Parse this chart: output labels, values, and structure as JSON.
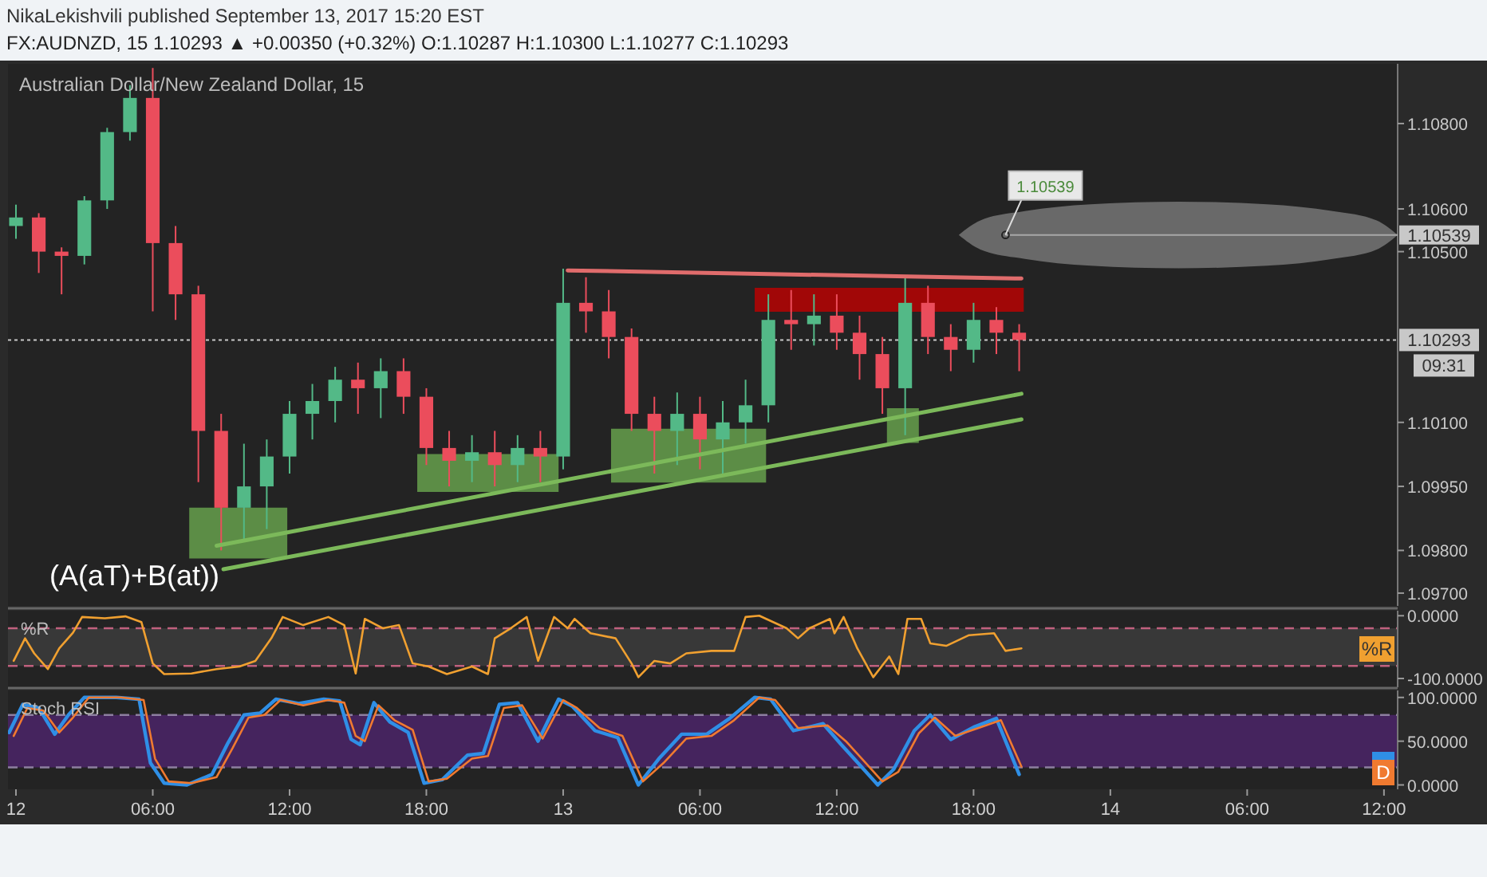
{
  "chart_data": [
    {
      "type": "candlestick",
      "title": "NikaLekishvili published September 13, 2017 15:20 EST",
      "subtitle": "FX:AUDNZD, 15  1.10293 ▲ +0.00350 (+0.32%)  O:1.10287  H:1.10300  L:1.10277  C:1.10293",
      "annotations": [
        "Australian Dollar/New Zealand Dollar, 15",
        "(A(aT)+B(at))",
        "09:31",
        {
          "text": "1.10539",
          "x": "2017-09-13T19:24",
          "y": 1.10539
        }
      ],
      "x": [
        "2017-09-12T00:00",
        "2017-09-12T01:00",
        "2017-09-12T02:00",
        "2017-09-12T03:00",
        "2017-09-12T04:00",
        "2017-09-12T05:00",
        "2017-09-12T06:00",
        "2017-09-12T07:00",
        "2017-09-12T08:00",
        "2017-09-12T09:00",
        "2017-09-12T10:00",
        "2017-09-12T11:00",
        "2017-09-12T12:00",
        "2017-09-12T13:00",
        "2017-09-12T14:00",
        "2017-09-12T15:00",
        "2017-09-12T16:00",
        "2017-09-12T17:00",
        "2017-09-12T18:00",
        "2017-09-12T19:00",
        "2017-09-12T20:00",
        "2017-09-12T21:00",
        "2017-09-12T22:00",
        "2017-09-12T23:00",
        "2017-09-13T00:00",
        "2017-09-13T01:00",
        "2017-09-13T02:00",
        "2017-09-13T03:00",
        "2017-09-13T04:00",
        "2017-09-13T05:00",
        "2017-09-13T06:00",
        "2017-09-13T07:00",
        "2017-09-13T08:00",
        "2017-09-13T09:00",
        "2017-09-13T10:00",
        "2017-09-13T11:00",
        "2017-09-13T12:00",
        "2017-09-13T13:00",
        "2017-09-13T14:00",
        "2017-09-13T15:00",
        "2017-09-13T16:00",
        "2017-09-13T17:00",
        "2017-09-13T18:00",
        "2017-09-13T19:00",
        "2017-09-13T20:00"
      ],
      "ohlc": [
        [
          1.1056,
          1.1061,
          1.1053,
          1.1058
        ],
        [
          1.1058,
          1.1059,
          1.1045,
          1.105
        ],
        [
          1.105,
          1.1051,
          1.104,
          1.1049
        ],
        [
          1.1049,
          1.1063,
          1.1047,
          1.1062
        ],
        [
          1.1062,
          1.1079,
          1.106,
          1.1078
        ],
        [
          1.1078,
          1.1089,
          1.1076,
          1.1086
        ],
        [
          1.1086,
          1.1093,
          1.1036,
          1.1052
        ],
        [
          1.1052,
          1.1056,
          1.1034,
          1.104
        ],
        [
          1.104,
          1.1042,
          1.0996,
          1.1008
        ],
        [
          1.1008,
          1.1012,
          1.098,
          1.099
        ],
        [
          1.099,
          1.1005,
          1.0982,
          1.0995
        ],
        [
          1.0995,
          1.1006,
          1.0985,
          1.1002
        ],
        [
          1.1002,
          1.1015,
          1.0998,
          1.1012
        ],
        [
          1.1012,
          1.1019,
          1.1006,
          1.1015
        ],
        [
          1.1015,
          1.1023,
          1.101,
          1.102
        ],
        [
          1.102,
          1.1024,
          1.1012,
          1.1018
        ],
        [
          1.1018,
          1.1025,
          1.1011,
          1.1022
        ],
        [
          1.1022,
          1.1025,
          1.1012,
          1.1016
        ],
        [
          1.1016,
          1.1018,
          1.1,
          1.1004
        ],
        [
          1.1004,
          1.1008,
          1.0995,
          1.1001
        ],
        [
          1.1001,
          1.1007,
          1.0996,
          1.1003
        ],
        [
          1.1003,
          1.1008,
          1.0995,
          1.1
        ],
        [
          1.1,
          1.1007,
          1.0996,
          1.1004
        ],
        [
          1.1004,
          1.1008,
          1.0996,
          1.1002
        ],
        [
          1.1002,
          1.1046,
          1.0999,
          1.1038
        ],
        [
          1.1038,
          1.1044,
          1.1031,
          1.1036
        ],
        [
          1.1036,
          1.1041,
          1.1025,
          1.103
        ],
        [
          1.103,
          1.1032,
          1.1008,
          1.1012
        ],
        [
          1.1012,
          1.1016,
          1.0998,
          1.1008
        ],
        [
          1.1008,
          1.1017,
          1.1,
          1.1012
        ],
        [
          1.1012,
          1.1016,
          1.0999,
          1.1006
        ],
        [
          1.1006,
          1.1015,
          1.0998,
          1.101
        ],
        [
          1.101,
          1.102,
          1.1005,
          1.1014
        ],
        [
          1.1014,
          1.104,
          1.101,
          1.1034
        ],
        [
          1.1034,
          1.1041,
          1.1027,
          1.1033
        ],
        [
          1.1033,
          1.104,
          1.1028,
          1.1035
        ],
        [
          1.1035,
          1.104,
          1.1027,
          1.1031
        ],
        [
          1.1031,
          1.1035,
          1.102,
          1.1026
        ],
        [
          1.1026,
          1.103,
          1.1012,
          1.1018
        ],
        [
          1.1018,
          1.1044,
          1.1007,
          1.1038
        ],
        [
          1.1038,
          1.1042,
          1.1026,
          1.103
        ],
        [
          1.103,
          1.1033,
          1.1022,
          1.1027
        ],
        [
          1.1027,
          1.1038,
          1.1024,
          1.1034
        ],
        [
          1.1034,
          1.1037,
          1.1026,
          1.1031
        ],
        [
          1.1031,
          1.1033,
          1.1022,
          1.10293
        ]
      ],
      "colors": [
        "#53b987",
        "#eb4d5c",
        "#eb4d5c",
        "#53b987",
        "#53b987",
        "#53b987",
        "#eb4d5c",
        "#eb4d5c",
        "#eb4d5c",
        "#eb4d5c",
        "#53b987",
        "#53b987",
        "#53b987",
        "#53b987",
        "#53b987",
        "#eb4d5c",
        "#53b987",
        "#eb4d5c",
        "#eb4d5c",
        "#eb4d5c",
        "#53b987",
        "#eb4d5c",
        "#53b987",
        "#eb4d5c",
        "#53b987",
        "#eb4d5c",
        "#eb4d5c",
        "#eb4d5c",
        "#eb4d5c",
        "#53b987",
        "#eb4d5c",
        "#53b987",
        "#53b987",
        "#53b987",
        "#eb4d5c",
        "#53b987",
        "#eb4d5c",
        "#eb4d5c",
        "#eb4d5c",
        "#53b987",
        "#eb4d5c",
        "#eb4d5c",
        "#53b987",
        "#eb4d5c",
        "#eb4d5c"
      ],
      "series": [
        {
          "type": "area",
          "color": "#6aa84f",
          "x": [
            "2017-09-12T07:36",
            "2017-09-12T11:54"
          ],
          "values": [
            null,
            null
          ],
          "lower": [
            1.09781,
            1.09781
          ],
          "upper": [
            1.099,
            1.099
          ]
        },
        {
          "type": "area",
          "color": "#6aa84f",
          "x": [
            "2017-09-12T17:36",
            "2017-09-12T23:48"
          ],
          "values": [
            null,
            null
          ],
          "lower": [
            1.09937,
            1.09937
          ],
          "upper": [
            1.10026,
            1.10026
          ]
        },
        {
          "type": "area",
          "color": "#6aa84f",
          "x": [
            "2017-09-13T02:06",
            "2017-09-13T08:54"
          ],
          "values": [
            null,
            null
          ],
          "lower": [
            1.09959,
            1.09959
          ],
          "upper": [
            1.10085,
            1.10085
          ]
        },
        {
          "type": "area",
          "color": "#6aa84f",
          "x": [
            "2017-09-13T14:12",
            "2017-09-13T15:36"
          ],
          "values": [
            null,
            null
          ],
          "lower": [
            1.10052,
            1.10052
          ],
          "upper": [
            1.10133,
            1.10133
          ]
        },
        {
          "type": "area",
          "color": "#7a7a7a",
          "x": [
            "2017-09-13T17:21",
            "2017-09-13T18:18",
            "2017-09-13T20:15",
            "2017-09-13T23:08",
            "2017-09-14T03:00",
            "2017-09-14T06:52",
            "2017-09-14T09:45",
            "2017-09-14T11:41",
            "2017-09-14T12:36"
          ],
          "values": [
            null,
            null,
            null,
            null,
            null,
            null,
            null,
            null,
            null
          ],
          "lower": [
            1.10539,
            1.10505,
            1.10483,
            1.10467,
            1.10461,
            1.10467,
            1.10483,
            1.10505,
            1.10539
          ],
          "upper": [
            1.10539,
            1.10573,
            1.10595,
            1.10611,
            1.10617,
            1.10611,
            1.10595,
            1.10573,
            1.10539
          ]
        },
        {
          "type": "area",
          "color": "#c00000",
          "x": [
            "2017-09-13T08:24",
            "2017-09-13T20:12"
          ],
          "values": [
            null,
            null
          ],
          "lower": [
            1.10359,
            1.10359
          ],
          "upper": [
            1.10415,
            1.10415
          ]
        },
        {
          "type": "line",
          "color": "#7cb95a",
          "x": [
            "2017-09-12T08:48",
            "2017-09-13T20:06"
          ],
          "values": [
            1.09811,
            1.10167
          ]
        },
        {
          "type": "line",
          "color": "#7cb95a",
          "x": [
            "2017-09-12T09:06",
            "2017-09-13T20:06"
          ],
          "values": [
            1.09756,
            1.10107
          ]
        },
        {
          "type": "line",
          "color": "#e06c6c",
          "x": [
            "2017-09-13T00:12",
            "2017-09-13T20:06"
          ],
          "values": [
            1.10456,
            1.10437
          ]
        }
      ],
      "ref_lines": [
        {
          "axis": "y",
          "value": 1.10293,
          "label": "1.10293",
          "line_style": "dotted",
          "color": "#c8c8c8"
        }
      ],
      "xlim": [
        "2017-09-11T23:39",
        "2017-09-14T12:36"
      ],
      "ylim": [
        1.0967,
        1.1094
      ],
      "yticks": [
        {
          "value": 1.097,
          "label": "1.09700"
        },
        {
          "value": 1.098,
          "label": "1.09800"
        },
        {
          "value": 1.0995,
          "label": "1.09950"
        },
        {
          "value": 1.101,
          "label": "1.10100"
        },
        {
          "value": 1.105,
          "label": "1.10500"
        },
        {
          "value": 1.106,
          "label": "1.10600"
        },
        {
          "value": 1.108,
          "label": "1.10800"
        }
      ],
      "tick_labels": "y"
    },
    {
      "type": "line",
      "title": "%R",
      "series": [
        {
          "name": "%R",
          "color": "#f0a030",
          "x": [
            "2017-09-11T23:54",
            "2017-09-12T00:24",
            "2017-09-12T00:48",
            "2017-09-12T01:24",
            "2017-09-12T01:54",
            "2017-09-12T02:30",
            "2017-09-12T02:54",
            "2017-09-12T03:54",
            "2017-09-12T04:48",
            "2017-09-12T05:30",
            "2017-09-12T06:00",
            "2017-09-12T06:30",
            "2017-09-12T07:42",
            "2017-09-12T08:48",
            "2017-09-12T09:48",
            "2017-09-12T10:30",
            "2017-09-12T11:12",
            "2017-09-12T11:42",
            "2017-09-12T12:36",
            "2017-09-12T13:42",
            "2017-09-12T14:24",
            "2017-09-12T14:54",
            "2017-09-12T15:18",
            "2017-09-12T16:06",
            "2017-09-12T16:48",
            "2017-09-12T17:24",
            "2017-09-12T18:06",
            "2017-09-12T18:54",
            "2017-09-12T20:00",
            "2017-09-12T20:42",
            "2017-09-12T21:00",
            "2017-09-12T21:42",
            "2017-09-12T22:24",
            "2017-09-12T22:54",
            "2017-09-12T23:36",
            "2017-09-13T00:12",
            "2017-09-13T00:30",
            "2017-09-13T01:12",
            "2017-09-13T02:18",
            "2017-09-13T03:00",
            "2017-09-13T03:18",
            "2017-09-13T04:00",
            "2017-09-13T04:42",
            "2017-09-13T05:24",
            "2017-09-13T06:30",
            "2017-09-13T07:30",
            "2017-09-13T08:00",
            "2017-09-13T08:36",
            "2017-09-13T09:48",
            "2017-09-13T10:18",
            "2017-09-13T10:48",
            "2017-09-13T11:42",
            "2017-09-13T11:54",
            "2017-09-13T12:18",
            "2017-09-13T12:54",
            "2017-09-13T13:36",
            "2017-09-13T14:18",
            "2017-09-13T14:42",
            "2017-09-13T15:06",
            "2017-09-13T15:42",
            "2017-09-13T16:06",
            "2017-09-13T16:48",
            "2017-09-13T17:48",
            "2017-09-13T18:54",
            "2017-09-13T19:24",
            "2017-09-13T20:06"
          ],
          "values": [
            -72,
            -36,
            -60,
            -85,
            -52,
            -27,
            -2,
            -4,
            -1,
            -10,
            -76,
            -93,
            -92,
            -85,
            -81,
            -72,
            -36,
            -2,
            -15,
            -2,
            -15,
            -92,
            -5,
            -20,
            -15,
            -76,
            -81,
            -93,
            -81,
            -93,
            -36,
            -20,
            -2,
            -72,
            -2,
            -20,
            -5,
            -28,
            -36,
            -76,
            -98,
            -72,
            -76,
            -60,
            -56,
            -56,
            -2,
            0,
            -20,
            -36,
            -20,
            -5,
            -28,
            -2,
            -52,
            -98,
            -65,
            -93,
            -5,
            -5,
            -44,
            -48,
            -31,
            -28,
            -56,
            -52
          ]
        }
      ],
      "bands": [
        {
          "axis": "y",
          "from": -80,
          "to": -20,
          "color": "#383838"
        }
      ],
      "ref_lines": [
        {
          "axis": "y",
          "value": -20,
          "line_style": "dashed",
          "color": "#c0607e"
        },
        {
          "axis": "y",
          "value": -80,
          "line_style": "dashed",
          "color": "#c0607e"
        }
      ],
      "xlim": [
        "2017-09-11T23:39",
        "2017-09-14T12:36"
      ],
      "ylim": [
        -114,
        8
      ],
      "yticks": [
        {
          "value": 0,
          "label": "0.0000"
        },
        {
          "value": -100,
          "label": "-100.0000"
        }
      ],
      "legend": "right",
      "tick_labels": "y"
    },
    {
      "type": "line",
      "title": "Stoch RSI",
      "series": [
        {
          "color": "#2f8fe6",
          "x": [
            "2017-09-11T23:42",
            "2017-09-12T00:18",
            "2017-09-12T01:00",
            "2017-09-12T01:42",
            "2017-09-12T02:18",
            "2017-09-12T03:00",
            "2017-09-12T04:24",
            "2017-09-12T05:24",
            "2017-09-12T05:54",
            "2017-09-12T06:30",
            "2017-09-12T07:30",
            "2017-09-12T08:36",
            "2017-09-12T09:18",
            "2017-09-12T10:00",
            "2017-09-12T10:42",
            "2017-09-12T11:24",
            "2017-09-12T12:24",
            "2017-09-12T13:30",
            "2017-09-12T14:12",
            "2017-09-12T14:42",
            "2017-09-12T15:06",
            "2017-09-12T15:42",
            "2017-09-12T16:24",
            "2017-09-12T17:12",
            "2017-09-12T17:54",
            "2017-09-12T18:42",
            "2017-09-12T19:48",
            "2017-09-12T20:30",
            "2017-09-12T21:12",
            "2017-09-12T22:00",
            "2017-09-12T22:54",
            "2017-09-12T23:48",
            "2017-09-13T00:24",
            "2017-09-13T01:24",
            "2017-09-13T02:24",
            "2017-09-13T03:18",
            "2017-09-13T04:12",
            "2017-09-13T05:12",
            "2017-09-13T06:18",
            "2017-09-13T07:18",
            "2017-09-13T08:24",
            "2017-09-13T09:06",
            "2017-09-13T10:06",
            "2017-09-13T11:24",
            "2017-09-13T12:12",
            "2017-09-13T12:54",
            "2017-09-13T13:48",
            "2017-09-13T14:30",
            "2017-09-13T15:24",
            "2017-09-13T16:06",
            "2017-09-13T17:00",
            "2017-09-13T18:00",
            "2017-09-13T19:00",
            "2017-09-13T20:00"
          ],
          "values": [
            60,
            92,
            88,
            58,
            80,
            100,
            100,
            98,
            25,
            2,
            0,
            12,
            48,
            80,
            82,
            98,
            93,
            98,
            96,
            52,
            46,
            94,
            72,
            60,
            2,
            6,
            34,
            36,
            92,
            94,
            50,
            98,
            90,
            62,
            54,
            0,
            30,
            58,
            58,
            76,
            100,
            98,
            62,
            70,
            46,
            26,
            0,
            18,
            62,
            80,
            52,
            66,
            76,
            12
          ]
        },
        {
          "name": "D",
          "color": "#f07a30",
          "x": [
            "2017-09-11T23:54",
            "2017-09-12T00:30",
            "2017-09-12T01:12",
            "2017-09-12T01:54",
            "2017-09-12T02:30",
            "2017-09-12T03:12",
            "2017-09-12T04:36",
            "2017-09-12T05:36",
            "2017-09-12T06:06",
            "2017-09-12T06:42",
            "2017-09-12T07:42",
            "2017-09-12T08:48",
            "2017-09-12T09:30",
            "2017-09-12T10:12",
            "2017-09-12T10:54",
            "2017-09-12T11:36",
            "2017-09-12T12:36",
            "2017-09-12T13:42",
            "2017-09-12T14:24",
            "2017-09-12T14:54",
            "2017-09-12T15:18",
            "2017-09-12T15:54",
            "2017-09-12T16:36",
            "2017-09-12T17:24",
            "2017-09-12T18:06",
            "2017-09-12T18:54",
            "2017-09-12T20:00",
            "2017-09-12T20:42",
            "2017-09-12T21:24",
            "2017-09-12T22:12",
            "2017-09-12T23:06",
            "2017-09-13T00:00",
            "2017-09-13T00:36",
            "2017-09-13T01:36",
            "2017-09-13T02:36",
            "2017-09-13T03:30",
            "2017-09-13T04:24",
            "2017-09-13T05:24",
            "2017-09-13T06:30",
            "2017-09-13T07:30",
            "2017-09-13T08:36",
            "2017-09-13T09:18",
            "2017-09-13T10:18",
            "2017-09-13T11:36",
            "2017-09-13T12:24",
            "2017-09-13T13:06",
            "2017-09-13T14:00",
            "2017-09-13T14:42",
            "2017-09-13T15:36",
            "2017-09-13T16:18",
            "2017-09-13T17:12",
            "2017-09-13T18:12",
            "2017-09-13T19:12",
            "2017-09-13T20:06"
          ],
          "values": [
            56,
            88,
            85,
            60,
            77,
            100,
            100,
            97,
            30,
            4,
            2,
            9,
            42,
            77,
            80,
            97,
            91,
            97,
            94,
            56,
            50,
            91,
            74,
            63,
            4,
            7,
            30,
            33,
            88,
            91,
            53,
            97,
            88,
            65,
            56,
            4,
            25,
            53,
            56,
            74,
            100,
            97,
            65,
            68,
            50,
            30,
            4,
            15,
            59,
            77,
            56,
            65,
            74,
            21
          ]
        }
      ],
      "bands": [
        {
          "axis": "y",
          "from": 20,
          "to": 80,
          "color": "#45245e"
        }
      ],
      "ref_lines": [
        {
          "axis": "y",
          "value": 80,
          "line_style": "dashed",
          "color": "#8d7fa0"
        },
        {
          "axis": "y",
          "value": 20,
          "line_style": "dashed",
          "color": "#8d7fa0"
        }
      ],
      "xlim": [
        "2017-09-11T23:39",
        "2017-09-14T12:36"
      ],
      "xticks": [
        {
          "value": "2017-09-12T00:00",
          "label": "12"
        },
        {
          "value": "2017-09-12T06:00",
          "label": "06:00"
        },
        {
          "value": "2017-09-12T12:00",
          "label": "12:00"
        },
        {
          "value": "2017-09-12T18:00",
          "label": "18:00"
        },
        {
          "value": "2017-09-13T00:00",
          "label": "13"
        },
        {
          "value": "2017-09-13T06:00",
          "label": "06:00"
        },
        {
          "value": "2017-09-13T12:00",
          "label": "12:00"
        },
        {
          "value": "2017-09-13T18:00",
          "label": "18:00"
        },
        {
          "value": "2017-09-14T00:00",
          "label": "14"
        },
        {
          "value": "2017-09-14T06:00",
          "label": "06:00"
        },
        {
          "value": "2017-09-14T12:00",
          "label": "12:00"
        }
      ],
      "ylim": [
        -5,
        108
      ],
      "yticks": [
        {
          "value": 0,
          "label": "0.0000"
        },
        {
          "value": 50,
          "label": "50.0000"
        },
        {
          "value": 100,
          "label": "100.0000"
        }
      ],
      "legend": "right"
    }
  ]
}
